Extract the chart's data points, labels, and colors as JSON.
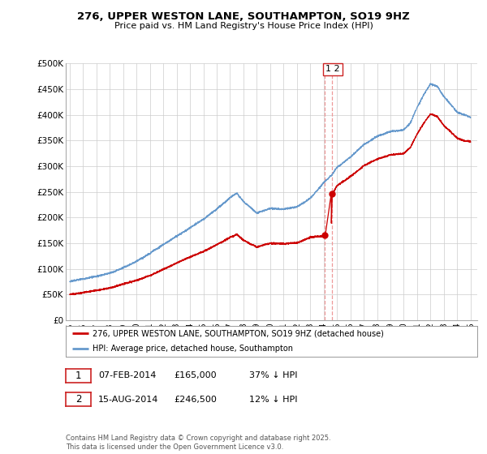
{
  "title": "276, UPPER WESTON LANE, SOUTHAMPTON, SO19 9HZ",
  "subtitle": "Price paid vs. HM Land Registry's House Price Index (HPI)",
  "ylabel_ticks": [
    "£0",
    "£50K",
    "£100K",
    "£150K",
    "£200K",
    "£250K",
    "£300K",
    "£350K",
    "£400K",
    "£450K",
    "£500K"
  ],
  "ytick_values": [
    0,
    50000,
    100000,
    150000,
    200000,
    250000,
    300000,
    350000,
    400000,
    450000,
    500000
  ],
  "ylim": [
    0,
    500000
  ],
  "xlim_start": 1994.7,
  "xlim_end": 2025.5,
  "xticks": [
    1995,
    1996,
    1997,
    1998,
    1999,
    2000,
    2001,
    2002,
    2003,
    2004,
    2005,
    2006,
    2007,
    2008,
    2009,
    2010,
    2011,
    2012,
    2013,
    2014,
    2015,
    2016,
    2017,
    2018,
    2019,
    2020,
    2021,
    2022,
    2023,
    2024,
    2025
  ],
  "red_line_color": "#cc0000",
  "blue_line_color": "#6699cc",
  "vline_color": "#ee9999",
  "vline1_x": 2014.1,
  "vline2_x": 2014.6,
  "sale1_year": 2014.1,
  "sale1_price": 165000,
  "sale2_year": 2014.6,
  "sale2_price": 246500,
  "legend_label_red": "276, UPPER WESTON LANE, SOUTHAMPTON, SO19 9HZ (detached house)",
  "legend_label_blue": "HPI: Average price, detached house, Southampton",
  "footnote3": "Contains HM Land Registry data © Crown copyright and database right 2025.\nThis data is licensed under the Open Government Licence v3.0.",
  "background_color": "#ffffff",
  "grid_color": "#cccccc"
}
